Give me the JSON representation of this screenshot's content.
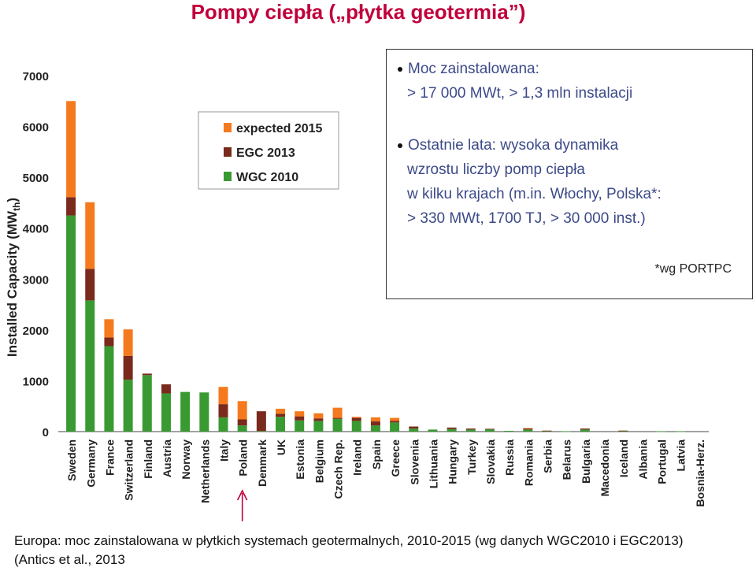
{
  "page": {
    "title": "Pompy ciepła („płytka geotermia”)",
    "info": {
      "bullet1": "Moc zainstalowana:",
      "bullet1_line2": "> 17 000 MWt, > 1,3 mln instalacji",
      "bullet2": "Ostatnie lata: wysoka dynamika",
      "bullet2_line2": "wzrostu liczby pomp ciepła",
      "bullet2_line3": "w kilku krajach (m.in. Włochy, Polska*:",
      "bullet2_line4": "> 330 MWt, 1700 TJ, > 30 000 inst.)",
      "note": "*wg PORTPC"
    },
    "caption_line1": "Europa: moc zainstalowana w płytkich systemach geotermalnych, 2010-2015 (wg danych WGC2010 i EGC2013)",
    "caption_line2": "(Antics et al., 2013"
  },
  "colors": {
    "wgc2010": "#3a9a32",
    "egc2013": "#7a2a1c",
    "expected2015": "#f57a1e",
    "highlight_arrow": "#c0003c"
  },
  "chart_data": {
    "type": "bar",
    "stacked": true,
    "ylabel": "Installed Capacity (MWth)",
    "ylabel_main": "Installed Capacity (MW",
    "ylabel_sub": "th",
    "ylabel_end": ")",
    "ylim": [
      0,
      7000
    ],
    "yticks": [
      0,
      1000,
      2000,
      3000,
      4000,
      5000,
      6000,
      7000
    ],
    "legend_position": "top-center",
    "highlight_category": "Poland",
    "categories": [
      "Sweden",
      "Germany",
      "France",
      "Switzerland",
      "Finland",
      "Austria",
      "Norway",
      "Netherlands",
      "Italy",
      "Poland",
      "Denmark",
      "UK",
      "Estonia",
      "Belgium",
      "Czech Rep.",
      "Ireland",
      "Spain",
      "Greece",
      "Slovenia",
      "Lithuania",
      "Hungary",
      "Turkey",
      "Slovakia",
      "Russia",
      "Romania",
      "Serbia",
      "Belarus",
      "Bulgaria",
      "Macedonia",
      "Iceland",
      "Albania",
      "Portugal",
      "Latvia",
      "Bosnia-Herz."
    ],
    "series": [
      {
        "name": "WGC 2010",
        "color": "#3a9a32",
        "values": [
          4250,
          2580,
          1680,
          1020,
          1110,
          750,
          780,
          770,
          280,
          120,
          10,
          290,
          220,
          210,
          250,
          210,
          120,
          180,
          60,
          40,
          50,
          40,
          45,
          15,
          40,
          10,
          5,
          40,
          0,
          10,
          0,
          5,
          5,
          0
        ]
      },
      {
        "name": "EGC 2013",
        "color": "#7a2a1c",
        "values": [
          360,
          620,
          170,
          470,
          30,
          180,
          0,
          0,
          260,
          120,
          390,
          60,
          80,
          50,
          20,
          60,
          80,
          30,
          40,
          0,
          30,
          20,
          10,
          0,
          25,
          10,
          0,
          20,
          0,
          10,
          0,
          0,
          0,
          0
        ]
      },
      {
        "name": "expected 2015",
        "color": "#f57a1e",
        "values": [
          1890,
          1310,
          360,
          520,
          0,
          0,
          0,
          0,
          340,
          360,
          0,
          100,
          100,
          100,
          200,
          20,
          80,
          60,
          0,
          0,
          0,
          0,
          0,
          0,
          5,
          0,
          0,
          0,
          0,
          0,
          0,
          0,
          0,
          0
        ]
      }
    ],
    "legend": [
      "expected 2015",
      "EGC 2013",
      "WGC 2010"
    ]
  }
}
